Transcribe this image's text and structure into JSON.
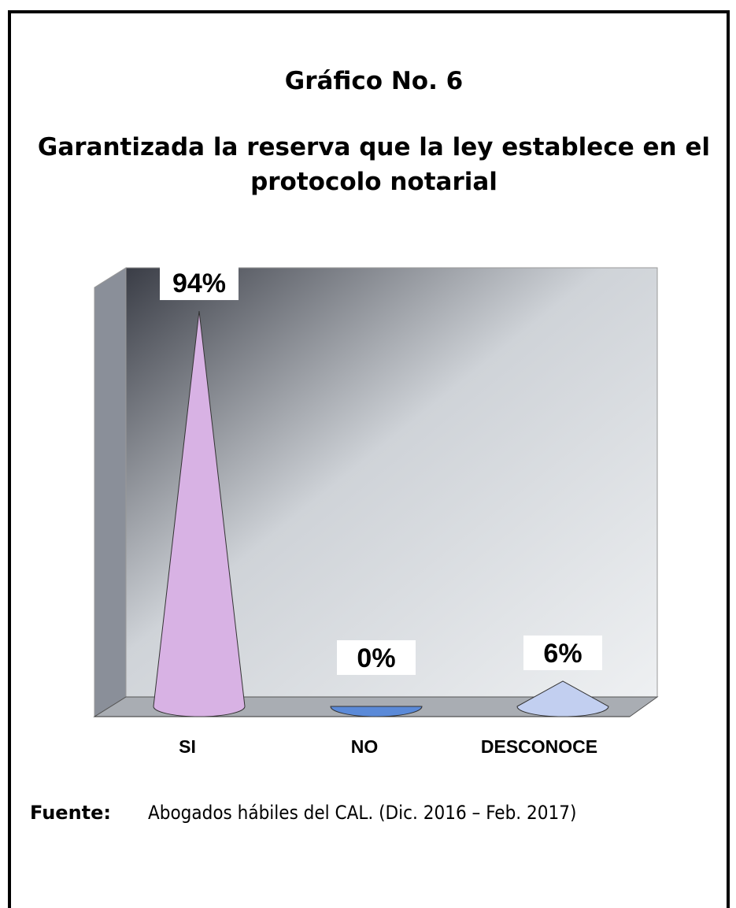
{
  "chart_data": {
    "type": "cone",
    "title": "Gráfico No. 6",
    "subtitle": "Garantizada la reserva que la ley establece en el protocolo notarial",
    "categories": [
      "SI",
      "NO",
      "DESCONOCE"
    ],
    "values": [
      94,
      0,
      6
    ],
    "value_labels": [
      "94%",
      "0%",
      "6%"
    ],
    "colors": [
      "#d8b2e4",
      "#5b8ad8",
      "#c2cff0"
    ],
    "source_label": "Fuente:",
    "source": "Abogados hábiles del CAL. (Dic. 2016 – Feb. 2017)"
  }
}
